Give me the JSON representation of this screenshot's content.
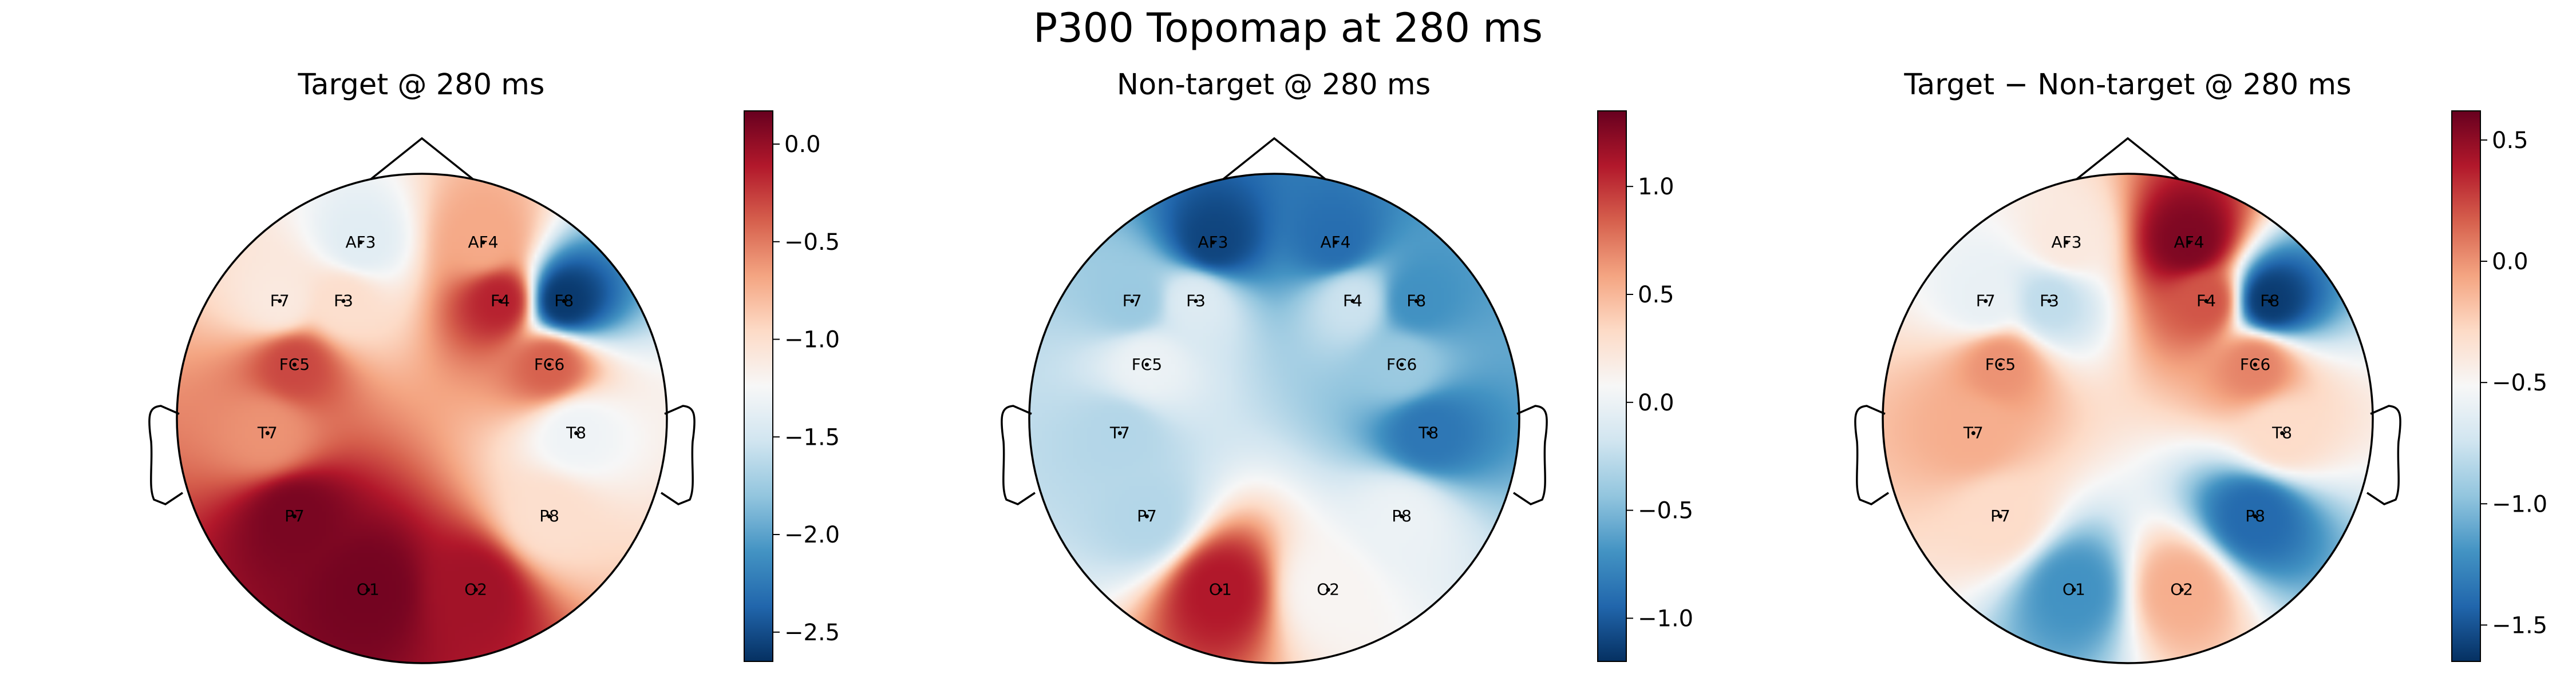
{
  "figure": {
    "title": "P300 Topomap at 280 ms"
  },
  "chart_data": [
    {
      "type": "heatmap",
      "title": "Target @ 280 ms",
      "colormap": "RdBu_r",
      "vlim": [
        -2.65,
        0.17
      ],
      "colorbar_ticks": [
        0.0,
        -0.5,
        -1.0,
        -1.5,
        -2.0,
        -2.5
      ],
      "colorbar_tick_labels": [
        "0.0",
        "−0.5",
        "−1.0",
        "−1.5",
        "−2.0",
        "−2.5"
      ],
      "channels": [
        {
          "name": "AF3",
          "x": -0.25,
          "y": 0.72,
          "value": -1.4
        },
        {
          "name": "AF4",
          "x": 0.25,
          "y": 0.72,
          "value": -0.7
        },
        {
          "name": "F7",
          "x": -0.58,
          "y": 0.48,
          "value": -1.1
        },
        {
          "name": "F3",
          "x": -0.32,
          "y": 0.48,
          "value": -1.0
        },
        {
          "name": "F4",
          "x": 0.32,
          "y": 0.48,
          "value": -0.15
        },
        {
          "name": "F8",
          "x": 0.58,
          "y": 0.48,
          "value": -2.6
        },
        {
          "name": "FC5",
          "x": -0.52,
          "y": 0.22,
          "value": -0.3
        },
        {
          "name": "FC6",
          "x": 0.52,
          "y": 0.22,
          "value": -0.4
        },
        {
          "name": "T7",
          "x": -0.63,
          "y": -0.06,
          "value": -0.6
        },
        {
          "name": "T8",
          "x": 0.63,
          "y": -0.06,
          "value": -1.3
        },
        {
          "name": "P7",
          "x": -0.52,
          "y": -0.4,
          "value": 0.1
        },
        {
          "name": "P8",
          "x": 0.52,
          "y": -0.4,
          "value": -1.0
        },
        {
          "name": "O1",
          "x": -0.22,
          "y": -0.7,
          "value": 0.12
        },
        {
          "name": "O2",
          "x": 0.22,
          "y": -0.7,
          "value": -0.05
        }
      ]
    },
    {
      "type": "heatmap",
      "title": "Non-target @ 280 ms",
      "colormap": "RdBu_r",
      "vlim": [
        -1.2,
        1.35
      ],
      "colorbar_ticks": [
        1.0,
        0.5,
        0.0,
        -0.5,
        -1.0
      ],
      "colorbar_tick_labels": [
        "1.0",
        "0.5",
        "0.0",
        "−0.5",
        "−1.0"
      ],
      "channels": [
        {
          "name": "AF3",
          "x": -0.25,
          "y": 0.72,
          "value": -1.1
        },
        {
          "name": "AF4",
          "x": 0.25,
          "y": 0.72,
          "value": -0.9
        },
        {
          "name": "F7",
          "x": -0.58,
          "y": 0.48,
          "value": -0.4
        },
        {
          "name": "F3",
          "x": -0.32,
          "y": 0.48,
          "value": -0.1
        },
        {
          "name": "F4",
          "x": 0.32,
          "y": 0.48,
          "value": -0.2
        },
        {
          "name": "F8",
          "x": 0.58,
          "y": 0.48,
          "value": -0.7
        },
        {
          "name": "FC5",
          "x": -0.52,
          "y": 0.22,
          "value": 0.0
        },
        {
          "name": "FC6",
          "x": 0.52,
          "y": 0.22,
          "value": -0.4
        },
        {
          "name": "T7",
          "x": -0.63,
          "y": -0.06,
          "value": -0.3
        },
        {
          "name": "T8",
          "x": 0.63,
          "y": -0.06,
          "value": -0.85
        },
        {
          "name": "P7",
          "x": -0.52,
          "y": -0.4,
          "value": -0.3
        },
        {
          "name": "P8",
          "x": 0.52,
          "y": -0.4,
          "value": 0.0
        },
        {
          "name": "O1",
          "x": -0.22,
          "y": -0.7,
          "value": 1.1
        },
        {
          "name": "O2",
          "x": 0.22,
          "y": -0.7,
          "value": 0.1
        }
      ]
    },
    {
      "type": "heatmap",
      "title": "Target − Non-target @ 280 ms",
      "colormap": "RdBu_r",
      "vlim": [
        -1.65,
        0.62
      ],
      "colorbar_ticks": [
        0.5,
        0.0,
        -0.5,
        -1.0,
        -1.5
      ],
      "colorbar_tick_labels": [
        "0.5",
        "0.0",
        "−0.5",
        "−1.0",
        "−1.5"
      ],
      "channels": [
        {
          "name": "AF3",
          "x": -0.25,
          "y": 0.72,
          "value": -0.4
        },
        {
          "name": "AF4",
          "x": 0.25,
          "y": 0.72,
          "value": 0.55
        },
        {
          "name": "F7",
          "x": -0.58,
          "y": 0.48,
          "value": -0.6
        },
        {
          "name": "F3",
          "x": -0.32,
          "y": 0.48,
          "value": -0.8
        },
        {
          "name": "F4",
          "x": 0.32,
          "y": 0.48,
          "value": 0.2
        },
        {
          "name": "F8",
          "x": 0.58,
          "y": 0.48,
          "value": -1.6
        },
        {
          "name": "FC5",
          "x": -0.52,
          "y": 0.22,
          "value": 0.0
        },
        {
          "name": "FC6",
          "x": 0.52,
          "y": 0.22,
          "value": 0.05
        },
        {
          "name": "T7",
          "x": -0.63,
          "y": -0.06,
          "value": -0.1
        },
        {
          "name": "T8",
          "x": 0.63,
          "y": -0.06,
          "value": -0.3
        },
        {
          "name": "P7",
          "x": -0.52,
          "y": -0.4,
          "value": -0.3
        },
        {
          "name": "P8",
          "x": 0.52,
          "y": -0.4,
          "value": -1.4
        },
        {
          "name": "O1",
          "x": -0.22,
          "y": -0.7,
          "value": -1.2
        },
        {
          "name": "O2",
          "x": 0.22,
          "y": -0.7,
          "value": -0.1
        }
      ]
    }
  ]
}
